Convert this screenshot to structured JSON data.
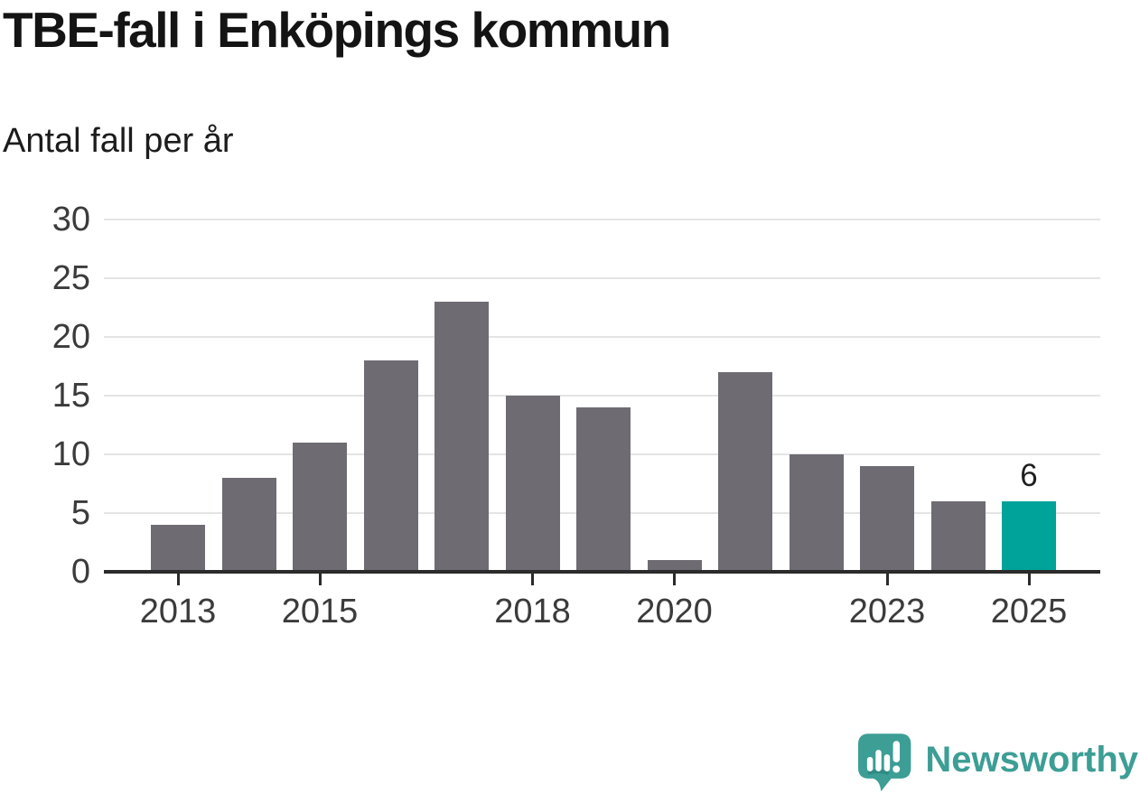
{
  "header": {
    "title": "TBE-fall i Enköpings kommun",
    "subtitle": "Antal fall per år"
  },
  "chart_data": {
    "type": "bar",
    "title": "TBE-fall i Enköpings kommun",
    "ylabel": "Antal fall per år",
    "xlabel": "",
    "categories": [
      "2013",
      "2014",
      "2015",
      "2016",
      "2017",
      "2018",
      "2019",
      "2020",
      "2021",
      "2022",
      "2023",
      "2024",
      "2025"
    ],
    "values": [
      4,
      8,
      11,
      18,
      23,
      15,
      14,
      1,
      17,
      10,
      9,
      6,
      6
    ],
    "highlight": {
      "index": 12,
      "category": "2025",
      "value": 6,
      "label": "6"
    },
    "ylim": [
      0,
      30
    ],
    "yticks": [
      0,
      5,
      10,
      15,
      20,
      25,
      30
    ],
    "xtick_labels": [
      "2013",
      "2015",
      "2018",
      "2020",
      "2023",
      "2025"
    ],
    "grid": "horizontal",
    "legend": "none",
    "bar_color": "#6f6b72",
    "highlight_color": "#00a39a"
  },
  "colors": {
    "background": "#ffffff",
    "axis": "#2b2b2b",
    "gridline": "#e4e4e4",
    "tick_label": "#3b3b3b"
  },
  "branding": {
    "name": "Newsworthy",
    "color": "#3c9e95",
    "icon": "newsworthy-speech-bubble-chart-icon"
  }
}
